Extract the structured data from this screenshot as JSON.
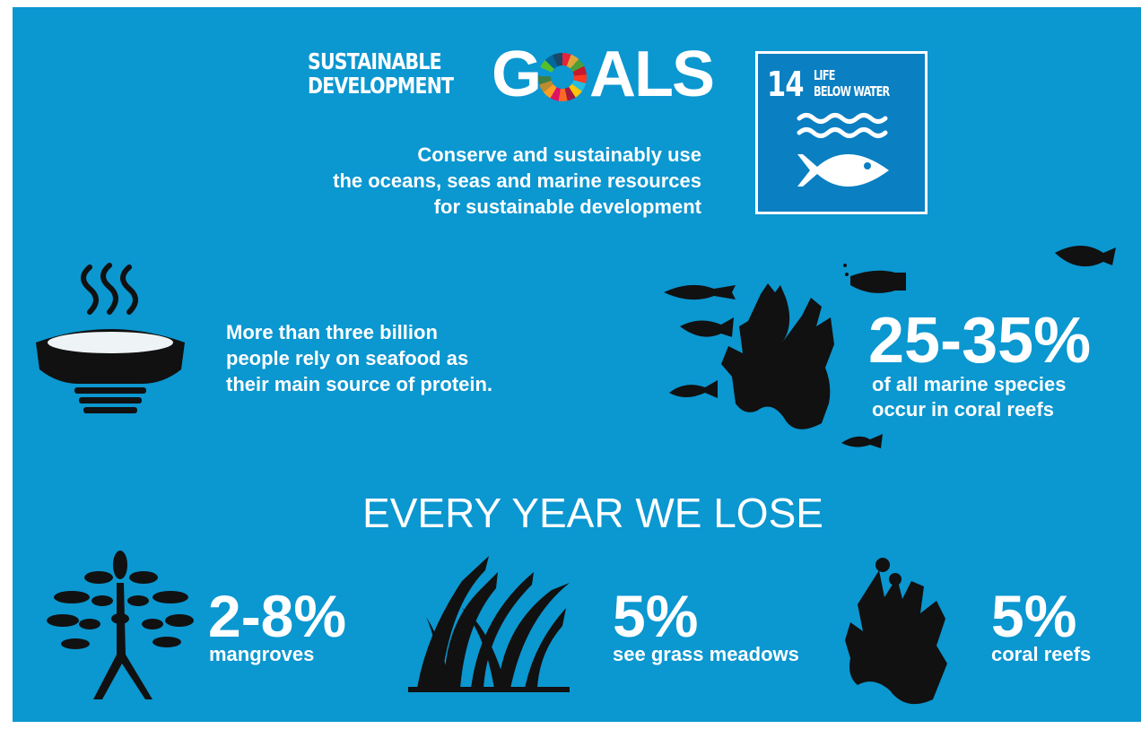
{
  "logo": {
    "line1": "SUSTAINABLE",
    "line2": "DEVELOPMENT",
    "word_start": "G",
    "word_end": "ALS"
  },
  "intro": {
    "lines": [
      "Conserve and sustainably use",
      "the oceans, seas and marine resources",
      "for sustainable development"
    ]
  },
  "goal_badge": {
    "number": "14",
    "label_lines": [
      "LIFE",
      "BELOW WATER"
    ]
  },
  "seafood": {
    "lines": [
      "More than three billion",
      "people rely on seafood as",
      "their main source of protein."
    ]
  },
  "coral_stat": {
    "value": "25-35%",
    "lines": [
      "of all marine species",
      "occur in coral reefs"
    ]
  },
  "losses": {
    "heading": "EVERY YEAR WE LOSE",
    "items": [
      {
        "value": "2-8%",
        "label": "mangroves"
      },
      {
        "value": "5%",
        "label": "see grass meadows"
      },
      {
        "value": "5%",
        "label": "coral reefs"
      }
    ]
  }
}
